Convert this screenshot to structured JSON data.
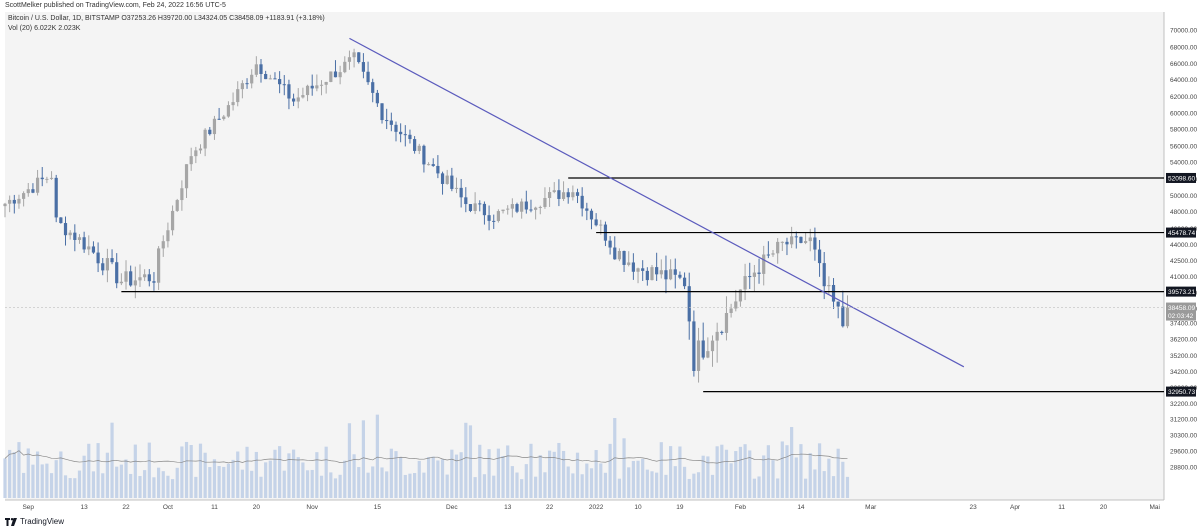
{
  "header": {
    "published": "ScottMelker published on TradingView.com, Feb 24, 2022 16:56 UTC-5"
  },
  "footer": {
    "brand": "TradingView"
  },
  "chart_data": {
    "type": "candlestick",
    "symbol_line": "Bitcoin / U.S. Dollar, 1D, BITSTAMP  O37253.26  H39720.00  L34324.05  C38458.09  +1183.91 (+3.18%)",
    "volume_line": "Vol (20)  6.022K  2.023K",
    "x_tick_labels": [
      "Sep",
      "13",
      "22",
      "Oct",
      "11",
      "20",
      "Nov",
      "15",
      "Dec",
      "13",
      "22",
      "2022",
      "10",
      "19",
      "Feb",
      "14",
      "Mar",
      "23",
      "Apr",
      "11",
      "20",
      "Mai"
    ],
    "y_tick_labels": [
      "70000.00",
      "68000.00",
      "66000.00",
      "64000.00",
      "62000.00",
      "60000.00",
      "58000.00",
      "56000.00",
      "54000.00",
      "52000.00",
      "50000.00",
      "48000.00",
      "46000.00",
      "44000.00",
      "42500.00",
      "41000.00",
      "39500.00",
      "38400.00",
      "37400.00",
      "36200.00",
      "35200.00",
      "34200.00",
      "33200.00",
      "32200.00",
      "31200.00",
      "30300.00",
      "29600.00",
      "28800.00"
    ],
    "price_range": [
      28300,
      71500
    ],
    "date_range": [
      "2021-08-27",
      "2022-05-03"
    ],
    "colors": {
      "up": "#a6a6a6",
      "down": "#4a6fa5",
      "trendline": "#5b5bbd",
      "level": "#000000",
      "volume": "#c5d3e8",
      "volume_ma": "#888888"
    },
    "ohlc_anchors": [
      {
        "date": "2021-08-27",
        "close": 49000
      },
      {
        "date": "2021-09-06",
        "close": 52500
      },
      {
        "date": "2021-09-07",
        "close": 46800
      },
      {
        "date": "2021-09-21",
        "close": 40600
      },
      {
        "date": "2021-09-28",
        "close": 41000
      },
      {
        "date": "2021-10-06",
        "close": 55000
      },
      {
        "date": "2021-10-15",
        "close": 61500
      },
      {
        "date": "2021-10-20",
        "close": 66000
      },
      {
        "date": "2021-10-28",
        "close": 61500
      },
      {
        "date": "2021-11-10",
        "close": 66500
      },
      {
        "date": "2021-11-16",
        "close": 60000
      },
      {
        "date": "2021-11-26",
        "close": 54000
      },
      {
        "date": "2021-12-04",
        "close": 49000
      },
      {
        "date": "2021-12-10",
        "close": 47500
      },
      {
        "date": "2021-12-27",
        "close": 50800
      },
      {
        "date": "2022-01-05",
        "close": 43500
      },
      {
        "date": "2022-01-10",
        "close": 41800
      },
      {
        "date": "2022-01-20",
        "close": 40500
      },
      {
        "date": "2022-01-22",
        "close": 35000
      },
      {
        "date": "2022-01-29",
        "close": 37900
      },
      {
        "date": "2022-02-04",
        "close": 41500
      },
      {
        "date": "2022-02-10",
        "close": 44000
      },
      {
        "date": "2022-02-16",
        "close": 44500
      },
      {
        "date": "2022-02-19",
        "close": 40000
      },
      {
        "date": "2022-02-23",
        "close": 37250
      },
      {
        "date": "2022-02-24",
        "close": 38458.09
      }
    ],
    "horizontal_levels": [
      {
        "price": 52098.6,
        "label": "52098.60",
        "from": "2021-12-26"
      },
      {
        "price": 45478.74,
        "label": "45478.74",
        "from": "2022-01-01"
      },
      {
        "price": 39573.21,
        "label": "39573.21",
        "from": "2021-09-21"
      },
      {
        "price": 32950.73,
        "label": "32950.73",
        "from": "2022-01-24"
      }
    ],
    "current_price": {
      "label": "38458.09",
      "countdown": "02:03:42"
    },
    "trendline": {
      "from": {
        "date": "2021-11-09",
        "price": 69000
      },
      "to": {
        "date": "2022-03-21",
        "price": 34500
      }
    }
  }
}
